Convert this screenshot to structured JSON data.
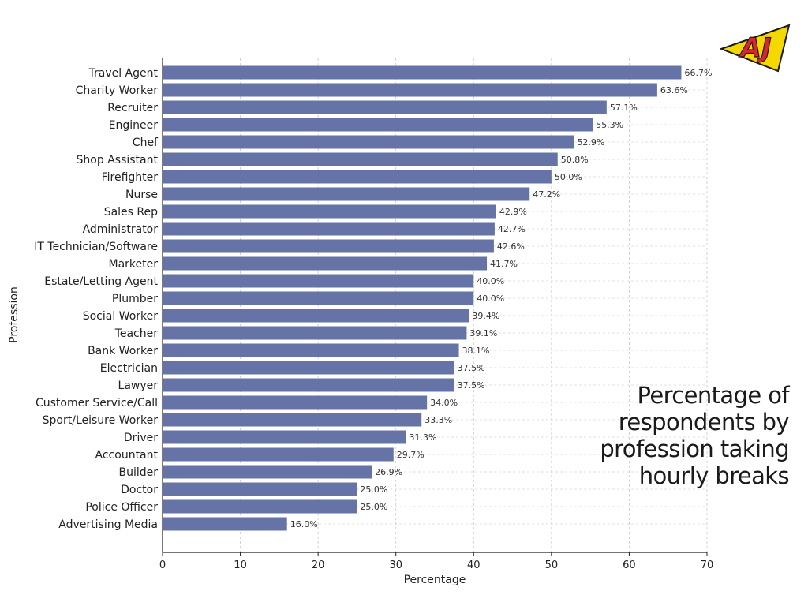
{
  "chart_data": {
    "type": "bar",
    "orientation": "horizontal",
    "title": "Percentage of respondents by profession taking hourly breaks",
    "xlabel": "Percentage",
    "ylabel": "Profession",
    "xlim": [
      0,
      70
    ],
    "xticks": [
      0,
      10,
      20,
      30,
      40,
      50,
      60,
      70
    ],
    "grid": true,
    "bar_color": "#6673a6",
    "categories": [
      "Travel Agent",
      "Charity Worker",
      "Recruiter",
      "Engineer",
      "Chef",
      "Shop Assistant",
      "Firefighter",
      "Nurse",
      "Sales Rep",
      "Administrator",
      "IT Technician/Software",
      "Marketer",
      "Estate/Letting Agent",
      "Plumber",
      "Social Worker",
      "Teacher",
      "Bank Worker",
      "Electrician",
      "Lawyer",
      "Customer Service/Call",
      "Sport/Leisure Worker",
      "Driver",
      "Accountant",
      "Builder",
      "Doctor",
      "Police Officer",
      "Advertising Media"
    ],
    "values": [
      66.7,
      63.6,
      57.1,
      55.3,
      52.9,
      50.8,
      50.0,
      47.2,
      42.9,
      42.7,
      42.6,
      41.7,
      40.0,
      40.0,
      39.4,
      39.1,
      38.1,
      37.5,
      37.5,
      34.0,
      33.3,
      31.3,
      29.7,
      26.9,
      25.0,
      25.0,
      16.0
    ],
    "data_labels": [
      "66.7%",
      "63.6%",
      "57.1%",
      "55.3%",
      "52.9%",
      "50.8%",
      "50.0%",
      "47.2%",
      "42.9%",
      "42.7%",
      "42.6%",
      "41.7%",
      "40.0%",
      "40.0%",
      "39.4%",
      "39.1%",
      "38.1%",
      "37.5%",
      "37.5%",
      "34.0%",
      "33.3%",
      "31.3%",
      "29.7%",
      "26.9%",
      "25.0%",
      "25.0%",
      "16.0%"
    ]
  },
  "side_title": {
    "line1": "Percentage of",
    "line2": "respondents by",
    "line3": "profession taking",
    "line4": "hourly breaks"
  },
  "logo": {
    "text": "AJ",
    "colors": {
      "fill": "#d8262e",
      "accent": "#f5d800",
      "outline": "#1a1a1a"
    }
  }
}
